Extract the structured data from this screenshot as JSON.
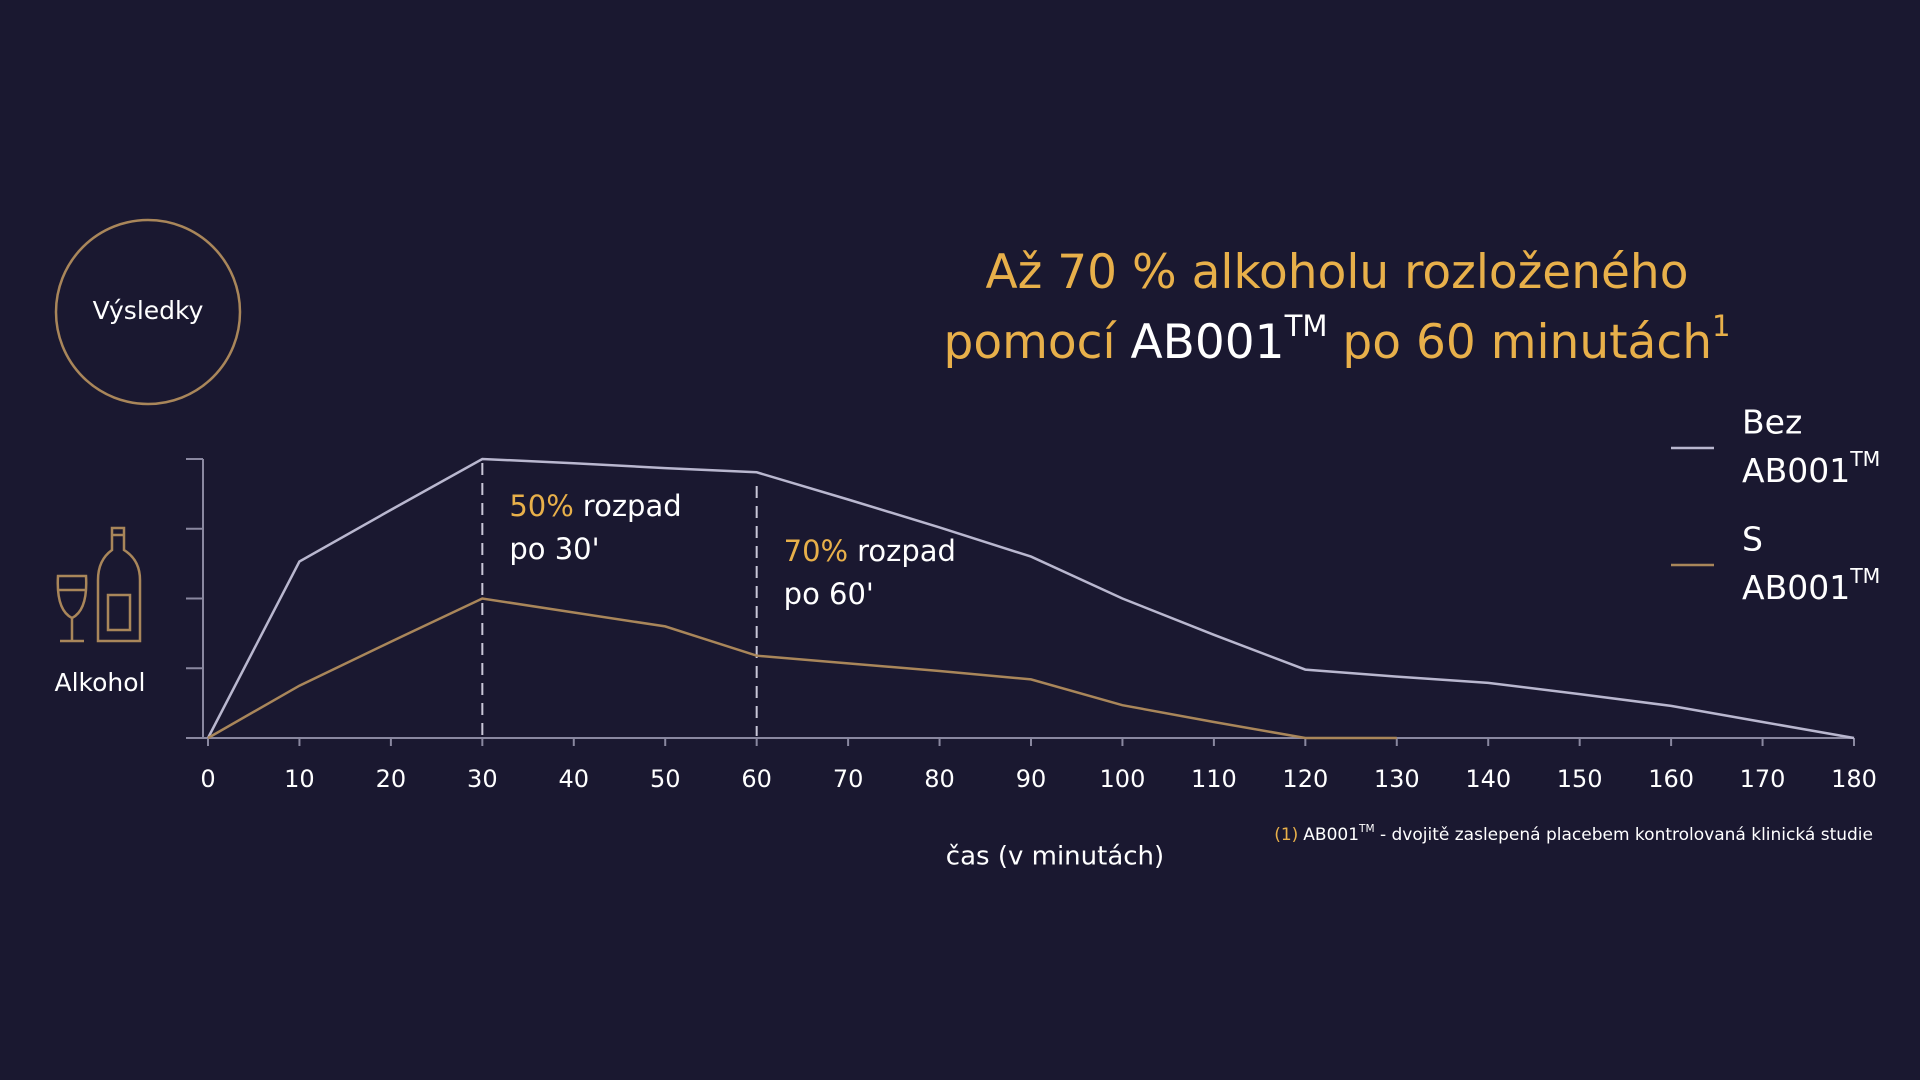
{
  "badge": "Výsledky",
  "y_label": "Alkohol",
  "chart_data": {
    "type": "line",
    "title": {
      "line1": "Až 70 % alkoholu rozloženého",
      "line2_a": "pomocí ",
      "line2_product": "AB001",
      "line2_tm": "TM",
      "line2_b": " po 60 minutách",
      "line2_ref": "1"
    },
    "x_label": "čas (v minutách)",
    "x": [
      0,
      10,
      20,
      30,
      40,
      50,
      60,
      70,
      80,
      90,
      100,
      110,
      120,
      130,
      140,
      150,
      160,
      170,
      180
    ],
    "xlim": [
      0,
      180
    ],
    "xticks": [
      0,
      10,
      20,
      30,
      40,
      50,
      60,
      70,
      80,
      90,
      100,
      110,
      120,
      130,
      140,
      150,
      160,
      170,
      180
    ],
    "ylim": [
      0,
      4
    ],
    "yticks": [
      0,
      1,
      2,
      3,
      4
    ],
    "series": [
      {
        "name": "Bez",
        "product": "AB001",
        "tm": "TM",
        "color": "#b9b7cf",
        "values": [
          0,
          2.53,
          3.27,
          4.0,
          3.94,
          3.87,
          3.81,
          3.42,
          3.02,
          2.6,
          2.0,
          1.48,
          0.98,
          0.88,
          0.79,
          0.63,
          0.46,
          0.23,
          0
        ]
      },
      {
        "name": "S",
        "product": "AB001",
        "tm": "TM",
        "color": "#a9865a",
        "values": [
          0,
          0.75,
          1.38,
          2.0,
          1.8,
          1.6,
          1.18,
          1.07,
          0.96,
          0.84,
          0.47,
          0.23,
          0,
          0,
          null,
          null,
          null,
          null,
          null
        ]
      }
    ],
    "annotations": [
      {
        "x": 30,
        "pct": "50%",
        "word": "rozpad",
        "line2": "po 30'"
      },
      {
        "x": 60,
        "pct": "70%",
        "word": "rozpad",
        "line2": "po 60'"
      }
    ],
    "footnote": {
      "ref": "(1)",
      "product": "AB001",
      "tm": "TM",
      "text": " - dvojitě zaslepená placebem kontrolovaná klinická studie"
    }
  }
}
